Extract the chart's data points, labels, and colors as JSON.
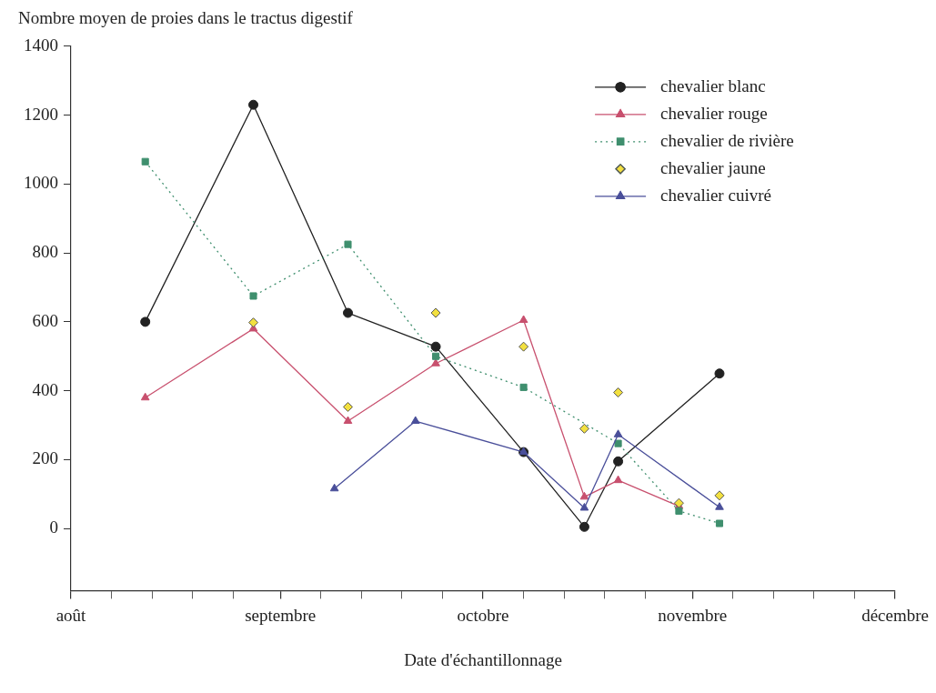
{
  "chart_data": {
    "type": "line",
    "ylabel": "Nombre moyen de proies dans le tractus digestif",
    "xlabel": "Date d'échantillonnage",
    "xlim": [
      "--08-01",
      "--12-01"
    ],
    "xticks": [
      {
        "value": "--08-01",
        "label": "août"
      },
      {
        "value": "--08-07",
        "label": null
      },
      {
        "value": "--08-13",
        "label": null
      },
      {
        "value": "--08-19",
        "label": null
      },
      {
        "value": "--08-25",
        "label": null
      },
      {
        "value": "--09-01",
        "label": "septembre"
      },
      {
        "value": "--09-07",
        "label": null
      },
      {
        "value": "--09-13",
        "label": null
      },
      {
        "value": "--09-19",
        "label": null
      },
      {
        "value": "--09-25",
        "label": null
      },
      {
        "value": "--10-01",
        "label": "octobre"
      },
      {
        "value": "--10-07",
        "label": null
      },
      {
        "value": "--10-13",
        "label": null
      },
      {
        "value": "--10-19",
        "label": null
      },
      {
        "value": "--10-25",
        "label": null
      },
      {
        "value": "--11-01",
        "label": "novembre"
      },
      {
        "value": "--11-07",
        "label": null
      },
      {
        "value": "--11-13",
        "label": null
      },
      {
        "value": "--11-19",
        "label": null
      },
      {
        "value": "--11-25",
        "label": null
      },
      {
        "value": "--12-01",
        "label": "décembre"
      }
    ],
    "ylim": [
      -180,
      1400
    ],
    "yticks": [
      0,
      200,
      400,
      600,
      800,
      1000,
      1200,
      1400
    ],
    "grid": false,
    "legend": "top right",
    "series": [
      {
        "name": "chevalier blanc",
        "color": "#222222",
        "marker": "circle",
        "line_style": "solid",
        "x": [
          "--08-12",
          "--08-28",
          "--09-11",
          "--09-24",
          "--10-07",
          "--10-16",
          "--10-21",
          "--11-05"
        ],
        "values": [
          600,
          1230,
          626,
          528,
          222,
          5,
          195,
          450
        ]
      },
      {
        "name": "chevalier rouge",
        "color": "#c8506e",
        "marker": "triangle",
        "line_style": "solid",
        "x": [
          "--08-12",
          "--08-28",
          "--09-11",
          "--09-24",
          "--10-07",
          "--10-16",
          "--10-21",
          "--10-30"
        ],
        "values": [
          380,
          580,
          312,
          479,
          605,
          92,
          140,
          65
        ]
      },
      {
        "name": "chevalier de rivière",
        "color": "#3f8f6e",
        "marker": "square",
        "line_style": "dotted",
        "x": [
          "--08-12",
          "--08-28",
          "--09-11",
          "--09-24",
          "--10-07",
          "--10-21",
          "--10-30",
          "--11-05"
        ],
        "values": [
          1065,
          675,
          825,
          500,
          410,
          247,
          51,
          15
        ]
      },
      {
        "name": "chevalier jaune",
        "type": "scatter",
        "color": "#f2e040",
        "marker": "diamond",
        "x": [
          "--08-28",
          "--09-11",
          "--09-24",
          "--10-07",
          "--10-16",
          "--10-21",
          "--10-30",
          "--11-05"
        ],
        "values": [
          598,
          353,
          626,
          528,
          290,
          395,
          74,
          96
        ]
      },
      {
        "name": "chevalier cuivré",
        "color": "#4a4f9a",
        "marker": "triangle",
        "line_style": "solid",
        "x": [
          "--09-09",
          "--09-21",
          "--10-07",
          "--10-16",
          "--10-21",
          "--11-05"
        ],
        "values": [
          116,
          312,
          222,
          60,
          273,
          62
        ]
      }
    ]
  }
}
